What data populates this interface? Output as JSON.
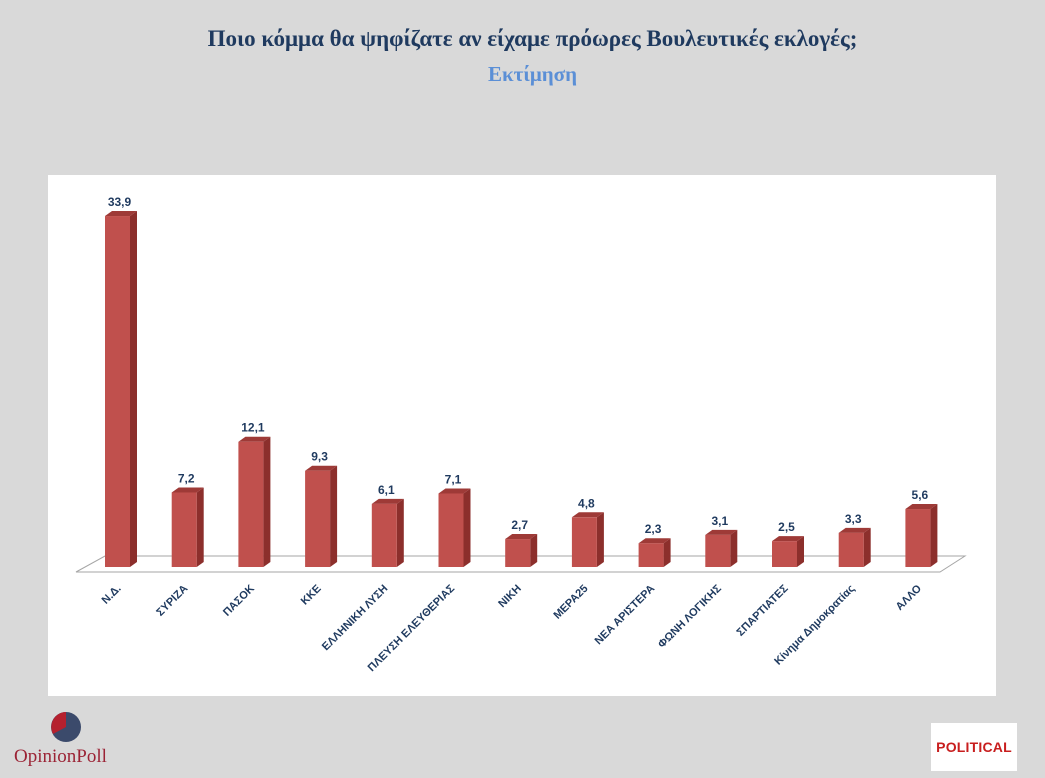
{
  "header": {
    "title": "Ποιο κόμμα θα ψηφίζατε αν είχαμε πρόωρες Βουλευτικές εκλογές;",
    "subtitle": "Εκτίμηση"
  },
  "chart_data": {
    "type": "bar",
    "title": "Ποιο κόμμα θα ψηφίζατε αν είχαμε πρόωρες Βουλευτικές εκλογές;",
    "subtitle": "Εκτίμηση",
    "categories": [
      "Ν.Δ.",
      "ΣΥΡΙΖΑ",
      "ΠΑΣΟΚ",
      "ΚΚΕ",
      "ΕΛΛΗΝΙΚΗ ΛΥΣΗ",
      "ΠΛΕΥΣΗ ΕΛΕΥΘΕΡΙΑΣ",
      "ΝΙΚΗ",
      "ΜΕΡΑ25",
      "ΝΕΑ ΑΡΙΣΤΕΡΑ",
      "ΦΩΝΗ ΛΟΓΙΚΗΣ",
      "ΣΠΑΡΤΙΑΤΕΣ",
      "Κίνημα Δημοκρατίας",
      "ΑΛΛΟ"
    ],
    "values": [
      33.9,
      7.2,
      12.1,
      9.3,
      6.1,
      7.1,
      2.7,
      4.8,
      2.3,
      3.1,
      2.5,
      3.3,
      5.6
    ],
    "value_labels": [
      "33,9",
      "7,2",
      "12,1",
      "9,3",
      "6,1",
      "7,1",
      "2,7",
      "4,8",
      "2,3",
      "3,1",
      "2,5",
      "3,3",
      "5,6"
    ],
    "ylim": [
      0,
      34
    ],
    "grid": false,
    "legend": "none",
    "colors": {
      "bar_front": "#c0504d",
      "bar_side": "#8c2f2c",
      "bar_top": "#9e3a37",
      "label": "#1f3a5f"
    }
  },
  "footer": {
    "left_logo": "OpinionPoll",
    "right_logo": "POLITICAL"
  }
}
